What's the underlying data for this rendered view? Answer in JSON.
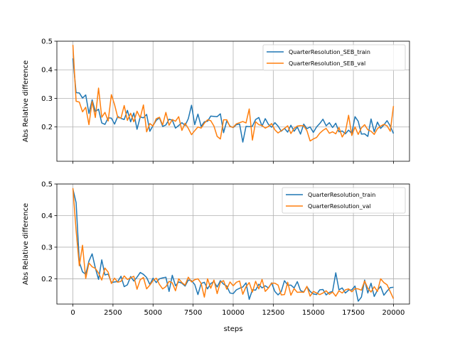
{
  "chart_data": [
    {
      "type": "line",
      "title": "",
      "xlabel": "",
      "ylabel": "Abs Relative difference",
      "xlim": [
        -1000,
        21000
      ],
      "ylim": [
        0.08,
        0.5
      ],
      "xticks": [
        0,
        2500,
        5000,
        7500,
        10000,
        12500,
        15000,
        17500,
        20000
      ],
      "xtick_labels_visible": false,
      "yticks": [
        0.2,
        0.3,
        0.4,
        0.5
      ],
      "ytick_labels": [
        "0.2",
        "0.3",
        "0.4",
        "0.5"
      ],
      "grid": true,
      "legend_position": "upper right",
      "x": [
        0,
        200,
        400,
        600,
        800,
        1000,
        1200,
        1400,
        1600,
        1800,
        2000,
        2200,
        2400,
        2600,
        2800,
        3000,
        3200,
        3400,
        3600,
        3800,
        4000,
        4200,
        4400,
        4600,
        4800,
        5000,
        5200,
        5400,
        5600,
        5800,
        6000,
        6200,
        6400,
        6600,
        6800,
        7000,
        7200,
        7400,
        7600,
        7800,
        8000,
        8200,
        8400,
        8600,
        8800,
        9000,
        9200,
        9400,
        9600,
        9800,
        10000,
        10200,
        10400,
        10600,
        10800,
        11000,
        11200,
        11400,
        11600,
        11800,
        12000,
        12200,
        12400,
        12600,
        12800,
        13000,
        13200,
        13400,
        13600,
        13800,
        14000,
        14200,
        14400,
        14600,
        14800,
        15000,
        15200,
        15400,
        15600,
        15800,
        16000,
        16200,
        16400,
        16600,
        16800,
        17000,
        17200,
        17400,
        17600,
        17800,
        18000,
        18200,
        18400,
        18600,
        18800,
        19000,
        19200,
        19400,
        19600,
        19800,
        20000
      ],
      "series": [
        {
          "name": "QuarterResolution_SEB_train",
          "color": "#1f77b4",
          "values": [
            0.44,
            0.32,
            0.319,
            0.301,
            0.312,
            0.247,
            0.295,
            0.254,
            0.262,
            0.214,
            0.209,
            0.232,
            0.231,
            0.21,
            0.237,
            0.23,
            0.226,
            0.258,
            0.218,
            0.249,
            0.192,
            0.235,
            0.232,
            0.244,
            0.185,
            0.205,
            0.223,
            0.232,
            0.202,
            0.207,
            0.227,
            0.224,
            0.196,
            0.205,
            0.215,
            0.205,
            0.229,
            0.276,
            0.208,
            0.245,
            0.202,
            0.218,
            0.22,
            0.238,
            0.237,
            0.236,
            0.246,
            0.18,
            0.221,
            0.203,
            0.198,
            0.208,
            0.21,
            0.147,
            0.202,
            0.201,
            0.203,
            0.226,
            0.233,
            0.203,
            0.229,
            0.209,
            0.199,
            0.215,
            0.203,
            0.185,
            0.195,
            0.182,
            0.206,
            0.185,
            0.2,
            0.175,
            0.21,
            0.194,
            0.2,
            0.181,
            0.2,
            0.212,
            0.227,
            0.204,
            0.215,
            0.198,
            0.213,
            0.183,
            0.186,
            0.176,
            0.189,
            0.177,
            0.236,
            0.22,
            0.175,
            0.176,
            0.167,
            0.228,
            0.183,
            0.217,
            0.195,
            0.207,
            0.222,
            0.203,
            0.177
          ]
        },
        {
          "name": "QuarterResolution_SEB_val",
          "color": "#ff7f0e",
          "values": [
            0.487,
            0.29,
            0.287,
            0.253,
            0.269,
            0.208,
            0.289,
            0.233,
            0.336,
            0.234,
            0.251,
            0.221,
            0.313,
            0.278,
            0.233,
            0.231,
            0.275,
            0.223,
            0.248,
            0.218,
            0.255,
            0.232,
            0.277,
            0.183,
            0.212,
            0.203,
            0.229,
            0.234,
            0.207,
            0.251,
            0.206,
            0.226,
            0.22,
            0.236,
            0.188,
            0.213,
            0.195,
            0.173,
            0.187,
            0.2,
            0.196,
            0.213,
            0.225,
            0.222,
            0.203,
            0.167,
            0.158,
            0.225,
            0.225,
            0.201,
            0.199,
            0.211,
            0.215,
            0.219,
            0.214,
            0.263,
            0.154,
            0.218,
            0.208,
            0.205,
            0.196,
            0.202,
            0.212,
            0.19,
            0.179,
            0.187,
            0.195,
            0.204,
            0.177,
            0.195,
            0.203,
            0.205,
            0.204,
            0.187,
            0.151,
            0.158,
            0.163,
            0.178,
            0.188,
            0.195,
            0.178,
            0.183,
            0.176,
            0.198,
            0.165,
            0.183,
            0.241,
            0.17,
            0.2,
            0.174,
            0.197,
            0.208,
            0.19,
            0.185,
            0.174,
            0.194,
            0.203,
            0.209,
            0.204,
            0.185,
            0.273
          ]
        }
      ]
    },
    {
      "type": "line",
      "title": "",
      "xlabel": "steps",
      "ylabel": "Abs Relative difference",
      "xlim": [
        -1000,
        21000
      ],
      "ylim": [
        0.12,
        0.5
      ],
      "xticks": [
        0,
        2500,
        5000,
        7500,
        10000,
        12500,
        15000,
        17500,
        20000
      ],
      "xtick_labels": [
        "0",
        "2500",
        "5000",
        "7500",
        "10000",
        "12500",
        "15000",
        "17500",
        "20000"
      ],
      "yticks": [
        0.2,
        0.3,
        0.4,
        0.5
      ],
      "ytick_labels": [
        "0.2",
        "0.3",
        "0.4",
        "0.5"
      ],
      "grid": true,
      "legend_position": "upper right",
      "x": [
        0,
        200,
        400,
        600,
        800,
        1000,
        1200,
        1400,
        1600,
        1800,
        2000,
        2200,
        2400,
        2600,
        2800,
        3000,
        3200,
        3400,
        3600,
        3800,
        4000,
        4200,
        4400,
        4600,
        4800,
        5000,
        5200,
        5400,
        5600,
        5800,
        6000,
        6200,
        6400,
        6600,
        6800,
        7000,
        7200,
        7400,
        7600,
        7800,
        8000,
        8200,
        8400,
        8600,
        8800,
        9000,
        9200,
        9400,
        9600,
        9800,
        10000,
        10200,
        10400,
        10600,
        10800,
        11000,
        11200,
        11400,
        11600,
        11800,
        12000,
        12200,
        12400,
        12600,
        12800,
        13000,
        13200,
        13400,
        13600,
        13800,
        14000,
        14200,
        14400,
        14600,
        14800,
        15000,
        15200,
        15400,
        15600,
        15800,
        16000,
        16200,
        16400,
        16600,
        16800,
        17000,
        17200,
        17400,
        17600,
        17800,
        18000,
        18200,
        18400,
        18600,
        18800,
        19000,
        19200,
        19400,
        19600,
        19800,
        20000
      ],
      "series": [
        {
          "name": "QuarterResolution_train",
          "color": "#1f77b4",
          "values": [
            0.484,
            0.441,
            0.253,
            0.222,
            0.214,
            0.256,
            0.279,
            0.234,
            0.198,
            0.26,
            0.212,
            0.215,
            0.188,
            0.19,
            0.191,
            0.208,
            0.175,
            0.181,
            0.207,
            0.193,
            0.205,
            0.22,
            0.214,
            0.204,
            0.182,
            0.202,
            0.188,
            0.2,
            0.203,
            0.205,
            0.16,
            0.211,
            0.178,
            0.19,
            0.186,
            0.177,
            0.196,
            0.194,
            0.182,
            0.15,
            0.185,
            0.189,
            0.168,
            0.185,
            0.191,
            0.174,
            0.194,
            0.183,
            0.177,
            0.155,
            0.153,
            0.165,
            0.17,
            0.174,
            0.187,
            0.135,
            0.165,
            0.164,
            0.183,
            0.171,
            0.178,
            0.171,
            0.187,
            0.16,
            0.149,
            0.16,
            0.194,
            0.18,
            0.18,
            0.171,
            0.191,
            0.163,
            0.158,
            0.175,
            0.16,
            0.152,
            0.15,
            0.165,
            0.166,
            0.149,
            0.157,
            0.16,
            0.219,
            0.165,
            0.171,
            0.155,
            0.164,
            0.165,
            0.177,
            0.129,
            0.142,
            0.196,
            0.155,
            0.186,
            0.144,
            0.164,
            0.176,
            0.148,
            0.161,
            0.172,
            0.173
          ]
        },
        {
          "name": "QuarterResolution_val",
          "color": "#ff7f0e",
          "values": [
            0.487,
            0.353,
            0.241,
            0.306,
            0.201,
            0.25,
            0.238,
            0.233,
            0.218,
            0.196,
            0.234,
            0.221,
            0.185,
            0.202,
            0.189,
            0.192,
            0.209,
            0.198,
            0.203,
            0.208,
            0.167,
            0.197,
            0.204,
            0.168,
            0.18,
            0.194,
            0.202,
            0.182,
            0.168,
            0.175,
            0.192,
            0.187,
            0.162,
            0.2,
            0.188,
            0.18,
            0.205,
            0.19,
            0.197,
            0.2,
            0.186,
            0.142,
            0.2,
            0.17,
            0.196,
            0.153,
            0.189,
            0.194,
            0.167,
            0.19,
            0.178,
            0.189,
            0.193,
            0.151,
            0.175,
            0.188,
            0.158,
            0.192,
            0.168,
            0.198,
            0.16,
            0.171,
            0.186,
            0.186,
            0.18,
            0.149,
            0.15,
            0.189,
            0.148,
            0.169,
            0.157,
            0.158,
            0.157,
            0.176,
            0.145,
            0.16,
            0.155,
            0.15,
            0.155,
            0.162,
            0.151,
            0.158,
            0.145,
            0.162,
            0.155,
            0.165,
            0.168,
            0.159,
            0.169,
            0.168,
            0.164,
            0.193,
            0.17,
            0.158,
            0.175,
            0.16,
            0.2,
            0.188,
            0.181,
            0.159,
            0.137
          ]
        }
      ]
    }
  ]
}
